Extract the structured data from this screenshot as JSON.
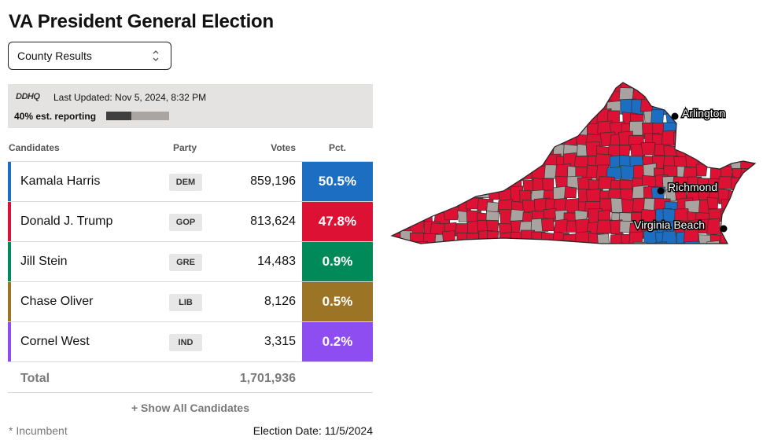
{
  "title": "VA President General Election",
  "view_select": {
    "selected": "County Results"
  },
  "status": {
    "logo": "DDHQ",
    "last_updated": "Last Updated: Nov 5, 2024, 8:32 PM",
    "reporting": "40% est. reporting",
    "reporting_fraction": 0.4
  },
  "table": {
    "headers": {
      "candidates": "Candidates",
      "party": "Party",
      "votes": "Votes",
      "pct": "Pct."
    },
    "rows": [
      {
        "name": "Kamala Harris",
        "party": "DEM",
        "votes": "859,196",
        "pct": "50.5%",
        "color": "#1b6ec2"
      },
      {
        "name": "Donald J. Trump",
        "party": "GOP",
        "votes": "813,624",
        "pct": "47.8%",
        "color": "#dd1133"
      },
      {
        "name": "Jill Stein",
        "party": "GRE",
        "votes": "14,483",
        "pct": "0.9%",
        "color": "#008a5a"
      },
      {
        "name": "Chase Oliver",
        "party": "LIB",
        "votes": "8,126",
        "pct": "0.5%",
        "color": "#9c7425"
      },
      {
        "name": "Cornel West",
        "party": "IND",
        "votes": "3,315",
        "pct": "0.2%",
        "color": "#8e4df0"
      }
    ],
    "total_label": "Total",
    "total_votes": "1,701,936"
  },
  "show_all": "+ Show All Candidates",
  "footnote": "* Incumbent",
  "election_date": "Election Date: 11/5/2024",
  "map": {
    "cities": [
      "Arlington",
      "Richmond",
      "Virginia Beach"
    ],
    "colors": {
      "dem": "#1b6ec2",
      "gop": "#dd1133",
      "pending": "#a8a39f"
    }
  }
}
